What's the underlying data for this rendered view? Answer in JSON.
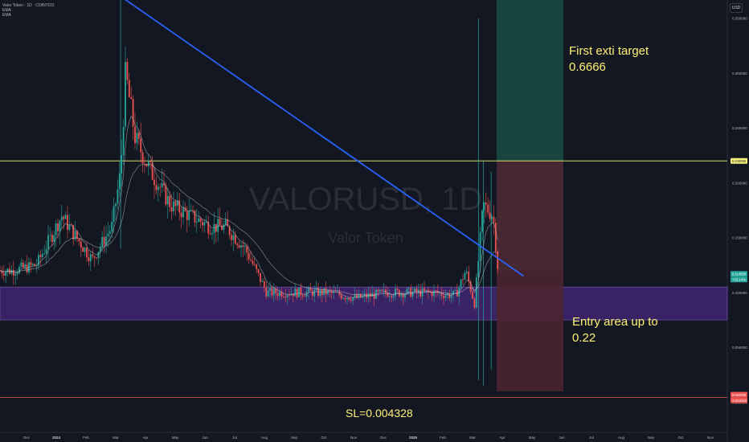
{
  "header": {
    "symbol_line": "Valor Token · 1D · COINTOO",
    "ema1": "EMA",
    "ema2": "EMA",
    "currency": "USD"
  },
  "watermark": {
    "symbol": "VALORUSD, 1D",
    "name": "Valor Token"
  },
  "colors": {
    "background": "#131722",
    "up": "#26a69a",
    "down": "#ef5350",
    "trendline": "#2962ff",
    "target_line": "#4caf50",
    "entry_line": "#f5f57a",
    "stop_line": "#ef5350",
    "zone": "#5b2e9c",
    "annotation_text": "#fff176"
  },
  "chart_data": {
    "type": "candlestick",
    "symbol": "VALORUSD",
    "interval": "1D",
    "x_tick_labels": [
      "Dec",
      "2024",
      "Feb",
      "Mar",
      "Apr",
      "May",
      "Jun",
      "Jul",
      "Aug",
      "Sep",
      "Oct",
      "Nov",
      "Dec",
      "2025",
      "Feb",
      "Mar",
      "Apr",
      "May",
      "Jun",
      "Jul",
      "Aug",
      "Sep",
      "Oct",
      "Nov"
    ],
    "y_tick_labels": [
      "0.700000",
      "0.650000",
      "0.600000",
      "0.550000",
      "0.500000",
      "0.450000",
      "0.400000",
      "0.350000",
      "0.300000",
      "0.250000",
      "0.200000",
      "0.150000",
      "0.100000",
      "0.050000",
      "0.000000",
      "-0.050000"
    ],
    "ylim": [
      -0.05,
      0.7
    ],
    "grid": false,
    "price_series": {
      "x": [
        "2023-11-15",
        "2023-12-10",
        "2024-01-05",
        "2024-01-20",
        "2024-02-05",
        "2024-02-25",
        "2024-03-05",
        "2024-03-10",
        "2024-03-20",
        "2024-04-05",
        "2024-04-25",
        "2024-05-15",
        "2024-06-05",
        "2024-06-20",
        "2024-07-10",
        "2024-08-01",
        "2024-09-01",
        "2024-10-01",
        "2024-11-01",
        "2024-12-01",
        "2025-01-01",
        "2025-01-20",
        "2025-02-01",
        "2025-02-10",
        "2025-02-20",
        "2025-03-01",
        "2025-03-10",
        "2025-03-20",
        "2025-03-25"
      ],
      "close": [
        0.12,
        0.125,
        0.17,
        0.15,
        0.13,
        0.16,
        0.21,
        0.3,
        0.24,
        0.21,
        0.18,
        0.17,
        0.16,
        0.16,
        0.14,
        0.1,
        0.1,
        0.1,
        0.095,
        0.1,
        0.1,
        0.1,
        0.098,
        0.098,
        0.12,
        0.09,
        0.18,
        0.17,
        0.12
      ]
    },
    "lines": [
      {
        "name": "First exti target",
        "value": 0.6666
      },
      {
        "name": "Entry area up to",
        "value": 0.22
      },
      {
        "name": "SL",
        "value": 0.004328
      },
      {
        "name": "Trendline",
        "points": [
          [
            "2024-03-05",
            0.37
          ],
          [
            "2025-04-20",
            0.115
          ]
        ]
      }
    ],
    "zones": [
      {
        "name": "support-zone",
        "from": 0.075,
        "to": 0.105
      },
      {
        "name": "target-zone",
        "from": 0.12,
        "to": 0.6666
      },
      {
        "name": "risk-zone",
        "from": 0.22,
        "to": 0.01
      }
    ],
    "last_price_label": "0.114500",
    "last_price_change": "+15.14%",
    "target_price_label": "0.666600",
    "entry_price_label": "0.220000",
    "sl_price_label": "0.004328",
    "sl_change_label": "-0.004328",
    "annotations": [
      {
        "lines": [
          "First exti target",
          "0.6666"
        ]
      },
      {
        "lines": [
          "Entry area up to",
          "0.22"
        ]
      },
      {
        "lines": [
          "SL=0.004328"
        ]
      }
    ]
  }
}
